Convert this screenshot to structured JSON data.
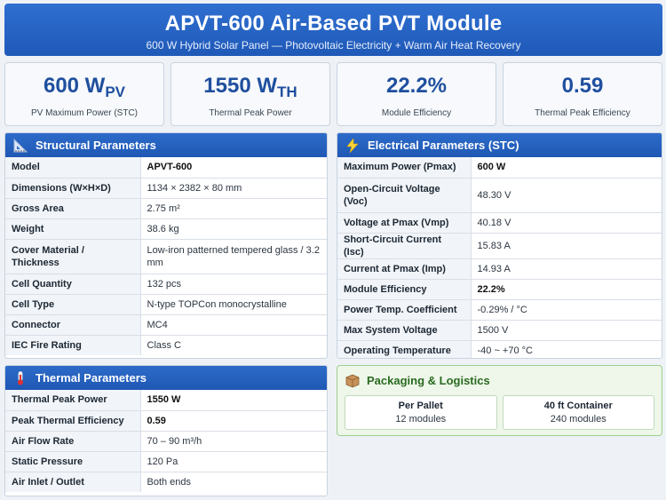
{
  "header": {
    "title": "APVT-600 Air-Based PVT Module",
    "subtitle": "600 W Hybrid Solar Panel — Photovoltaic Electricity + Warm Air Heat Recovery"
  },
  "kpis": [
    {
      "value": "600 W",
      "sub": "PV",
      "label": "PV Maximum Power (STC)"
    },
    {
      "value": "1550 W",
      "sub": "TH",
      "label": "Thermal Peak Power"
    },
    {
      "value": "22.2%",
      "sub": "",
      "label": "Module Efficiency"
    },
    {
      "value": "0.59",
      "sub": "",
      "label": "Thermal Peak Efficiency"
    }
  ],
  "structural": {
    "title": "Structural Parameters",
    "icon": "ruler-icon",
    "rows": [
      {
        "k": "Model",
        "v": "APVT-600",
        "bold": true
      },
      {
        "k": "Dimensions (W×H×D)",
        "v": "1134 × 2382 × 80 mm"
      },
      {
        "k": "Gross Area",
        "v": "2.75 m²"
      },
      {
        "k": "Weight",
        "v": "38.6 kg"
      },
      {
        "k": "Cover Material / Thickness",
        "v": "Low-iron patterned tempered glass / 3.2 mm"
      },
      {
        "k": "Cell Quantity",
        "v": "132 pcs"
      },
      {
        "k": "Cell Type",
        "v": "N-type TOPCon monocrystalline"
      },
      {
        "k": "Connector",
        "v": "MC4"
      },
      {
        "k": "IEC Fire Rating",
        "v": "Class C"
      }
    ]
  },
  "electrical": {
    "title": "Electrical Parameters (STC)",
    "icon": "lightning-icon",
    "rows": [
      {
        "k": "Maximum Power (Pmax)",
        "v": "600 W",
        "bold": true
      },
      {
        "k": "Open-Circuit Voltage (Voc)",
        "v": "48.30 V"
      },
      {
        "k": "Voltage at Pmax (Vmp)",
        "v": "40.18 V"
      },
      {
        "k": "Short-Circuit Current (Isc)",
        "v": "15.83 A"
      },
      {
        "k": "Current at Pmax (Imp)",
        "v": "14.93 A"
      },
      {
        "k": "Module Efficiency",
        "v": "22.2%",
        "bold": true
      },
      {
        "k": "Power Temp. Coefficient",
        "v": "-0.29% / °C"
      },
      {
        "k": "Max System Voltage",
        "v": "1500 V"
      },
      {
        "k": "Operating Temperature",
        "v": "-40 ~ +70 °C"
      }
    ]
  },
  "thermal": {
    "title": "Thermal Parameters",
    "icon": "thermometer-icon",
    "rows": [
      {
        "k": "Thermal Peak Power",
        "v": "1550 W",
        "bold": true
      },
      {
        "k": "Peak Thermal Efficiency",
        "v": "0.59",
        "bold": true
      },
      {
        "k": "Air Flow Rate",
        "v": "70 – 90 m³/h"
      },
      {
        "k": "Static Pressure",
        "v": "120 Pa"
      },
      {
        "k": "Air Inlet / Outlet",
        "v": "Both ends"
      }
    ]
  },
  "logistics": {
    "title": "Packaging & Logistics",
    "icon": "package-icon",
    "boxes": [
      {
        "title": "Per Pallet",
        "value": "12 modules"
      },
      {
        "title": "40 ft Container",
        "value": "240 modules"
      }
    ]
  }
}
